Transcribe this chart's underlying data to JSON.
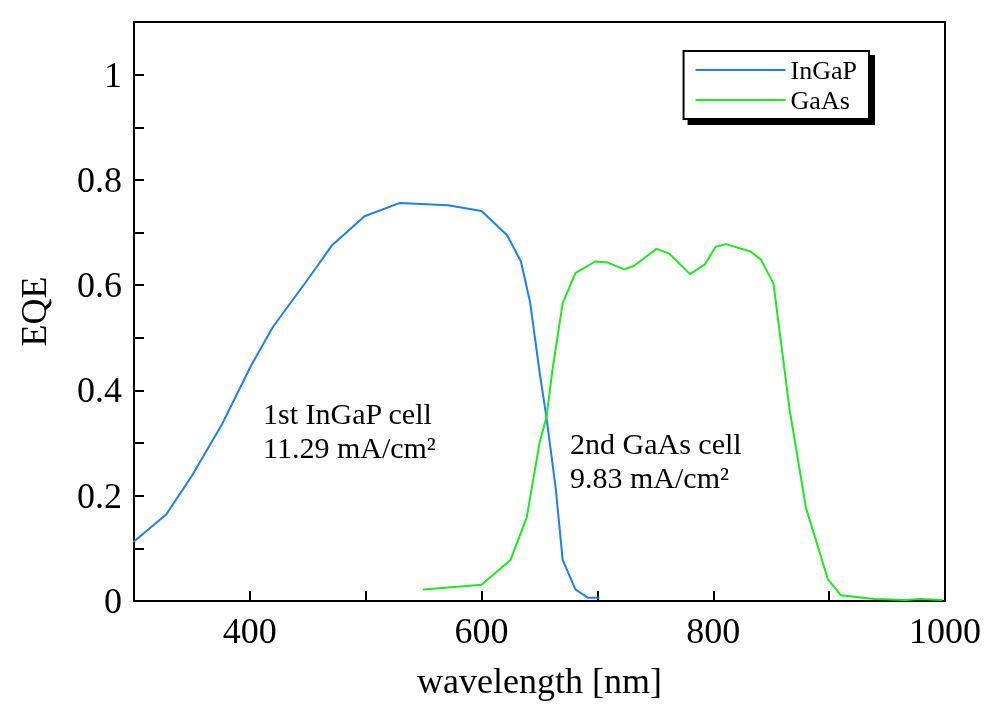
{
  "chart_data": {
    "type": "line",
    "xlabel": "wavelength [nm]",
    "ylabel": "EQE",
    "xlim": [
      300,
      1000
    ],
    "ylim": [
      0,
      1.1
    ],
    "xticks": [
      {
        "value": 300,
        "label": null
      },
      400,
      {
        "value": 500,
        "label": null
      },
      600,
      {
        "value": 700,
        "label": null
      },
      800,
      {
        "value": 900,
        "label": null
      },
      1000
    ],
    "yticks": [
      0,
      {
        "value": 0.1,
        "label": null
      },
      0.2,
      {
        "value": 0.3,
        "label": null
      },
      0.4,
      {
        "value": 0.5,
        "label": null
      },
      0.6,
      {
        "value": 0.7,
        "label": null
      },
      0.8,
      {
        "value": 0.9,
        "label": null
      },
      1
    ],
    "grid": false,
    "legend": "top right",
    "marker": "none",
    "line_style": "solid",
    "annotations": [
      "1st InGaP cell\n11.29 mA/cm²",
      "2nd GaAs cell\n9.83 mA/cm²"
    ],
    "series": [
      {
        "name": "InGaP",
        "color": "#1e7ff0",
        "x": [
          300,
          328,
          350,
          376,
          401,
          420,
          449,
          471,
          499,
          529,
          571,
          600,
          622,
          634,
          642,
          650,
          656,
          664,
          670,
          681,
          692,
          701
        ],
        "values": [
          0.113,
          0.165,
          0.238,
          0.336,
          0.447,
          0.521,
          0.608,
          0.676,
          0.731,
          0.756,
          0.752,
          0.741,
          0.695,
          0.645,
          0.566,
          0.436,
          0.349,
          0.214,
          0.078,
          0.022,
          0.006,
          0.006
        ]
      },
      {
        "name": "GaAs",
        "color": "#1ee81e",
        "x": [
          550,
          600,
          625,
          639,
          650,
          656,
          661,
          670,
          681,
          698,
          709,
          723,
          731,
          751,
          762,
          780,
          793,
          802,
          811,
          832,
          841,
          852,
          857,
          866,
          880,
          899,
          910,
          939,
          966,
          978,
          997
        ],
        "values": [
          0.022,
          0.031,
          0.078,
          0.159,
          0.3,
          0.349,
          0.436,
          0.566,
          0.623,
          0.645,
          0.643,
          0.63,
          0.636,
          0.669,
          0.66,
          0.621,
          0.64,
          0.673,
          0.678,
          0.664,
          0.649,
          0.603,
          0.516,
          0.362,
          0.177,
          0.041,
          0.011,
          0.004,
          0.002,
          0.004,
          0.002
        ]
      }
    ]
  }
}
